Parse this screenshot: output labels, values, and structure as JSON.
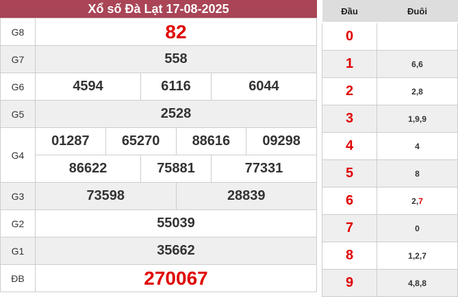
{
  "title": "Xổ số Đà Lạt 17-08-2025",
  "prizes": {
    "g8": {
      "label": "G8",
      "v": [
        "82"
      ]
    },
    "g7": {
      "label": "G7",
      "v": [
        "558"
      ]
    },
    "g6": {
      "label": "G6",
      "v": [
        "4594",
        "6116",
        "6044"
      ]
    },
    "g5": {
      "label": "G5",
      "v": [
        "2528"
      ]
    },
    "g4": {
      "label": "G4",
      "v": [
        "01287",
        "65270",
        "88616",
        "09298",
        "86622",
        "75881",
        "77331"
      ]
    },
    "g3": {
      "label": "G3",
      "v": [
        "73598",
        "28839"
      ]
    },
    "g2": {
      "label": "G2",
      "v": [
        "55039"
      ]
    },
    "g1": {
      "label": "G1",
      "v": [
        "35662"
      ]
    },
    "db": {
      "label": "ĐB",
      "v": [
        "270067"
      ]
    }
  },
  "loto": {
    "head_label": "Đầu",
    "tail_label": "Đuôi",
    "rows": [
      {
        "d": "0",
        "t": []
      },
      {
        "d": "1",
        "t": [
          {
            "n": "6"
          },
          {
            "n": "6"
          }
        ]
      },
      {
        "d": "2",
        "t": [
          {
            "n": "2"
          },
          {
            "n": "8"
          }
        ]
      },
      {
        "d": "3",
        "t": [
          {
            "n": "1"
          },
          {
            "n": "9"
          },
          {
            "n": "9"
          }
        ]
      },
      {
        "d": "4",
        "t": [
          {
            "n": "4"
          }
        ]
      },
      {
        "d": "5",
        "t": [
          {
            "n": "8"
          }
        ]
      },
      {
        "d": "6",
        "t": [
          {
            "n": "2"
          },
          {
            "n": "7",
            "hl": true
          }
        ]
      },
      {
        "d": "7",
        "t": [
          {
            "n": "0"
          }
        ]
      },
      {
        "d": "8",
        "t": [
          {
            "n": "1"
          },
          {
            "n": "2"
          },
          {
            "n": "7"
          }
        ]
      },
      {
        "d": "9",
        "t": [
          {
            "n": "4"
          },
          {
            "n": "8"
          },
          {
            "n": "8"
          }
        ]
      }
    ]
  },
  "colors": {
    "header": "#a94556",
    "highlight": "#e00000"
  }
}
